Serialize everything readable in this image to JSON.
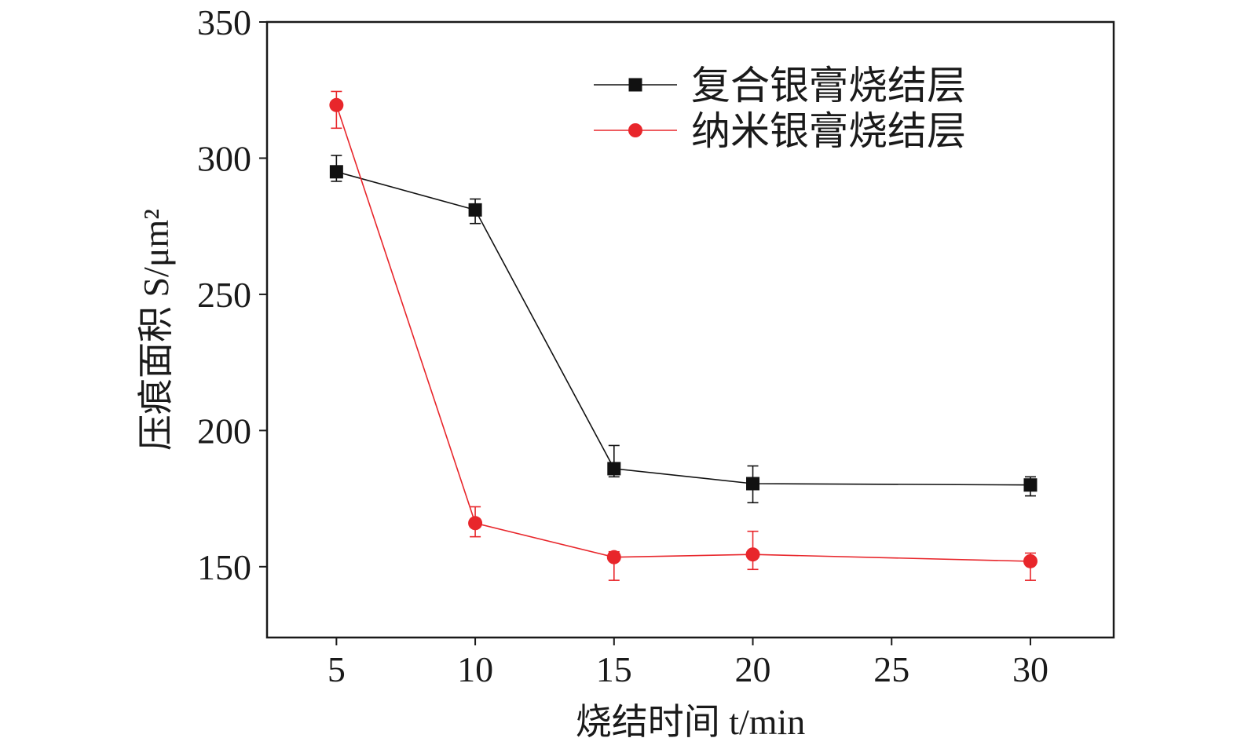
{
  "chart_data": {
    "type": "line",
    "title": "",
    "xlabel": "烧结时间 t/min",
    "ylabel": "压痕面积 S/μm²",
    "xlim": [
      2.5,
      33
    ],
    "ylim": [
      124,
      350
    ],
    "x_ticks": [
      5,
      10,
      15,
      20,
      25,
      30
    ],
    "y_ticks": [
      150,
      200,
      250,
      300,
      350
    ],
    "grid": false,
    "legend_position": "top-right",
    "series": [
      {
        "name": "复合银膏烧结层",
        "color": "#111111",
        "marker": "square",
        "x": [
          5,
          10,
          15,
          20,
          30
        ],
        "y": [
          295,
          281,
          186,
          180.5,
          180
        ],
        "err_lower": [
          3.5,
          5,
          3,
          7,
          4
        ],
        "err_upper": [
          6,
          4,
          8.5,
          6.5,
          3
        ]
      },
      {
        "name": "纳米银膏烧结层",
        "color": "#e8262b",
        "marker": "circle",
        "x": [
          5,
          10,
          15,
          20,
          30
        ],
        "y": [
          319.5,
          166,
          153.5,
          154.5,
          152
        ],
        "err_lower": [
          8.5,
          5,
          8.5,
          5.5,
          7
        ],
        "err_upper": [
          5,
          6,
          2,
          8.5,
          3
        ]
      }
    ]
  }
}
